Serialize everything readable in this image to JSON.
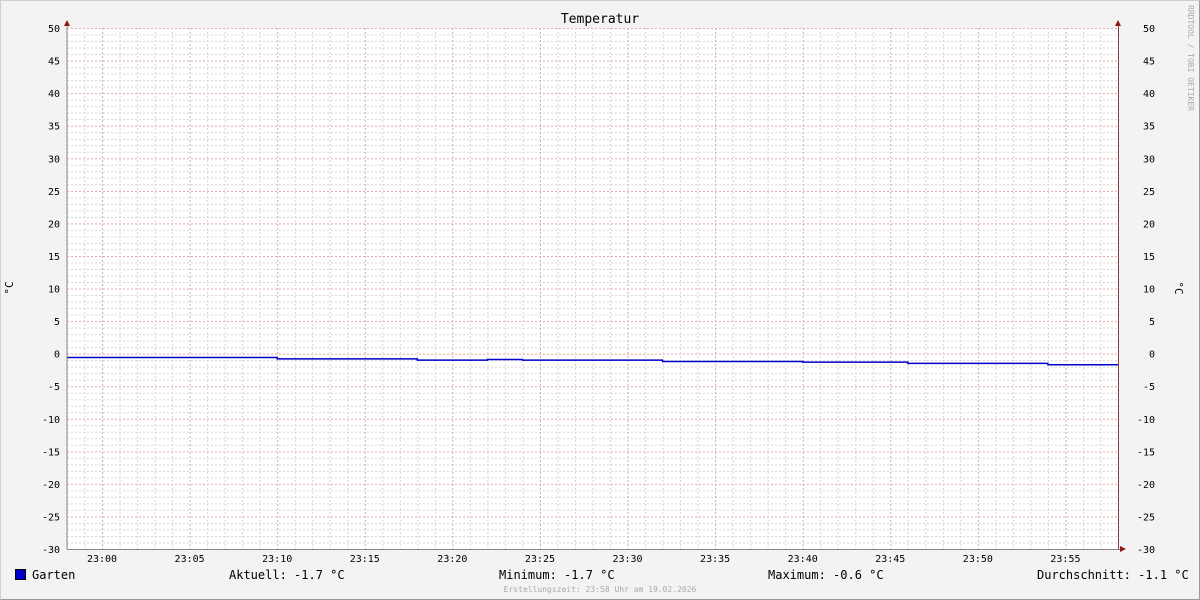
{
  "chart_data": {
    "type": "line",
    "title": "Temperatur",
    "ylabel": "°C",
    "ylabel_right": "°C",
    "ylim": [
      -30,
      50
    ],
    "yticks": [
      50,
      45,
      40,
      35,
      30,
      25,
      20,
      15,
      10,
      5,
      0,
      -5,
      -10,
      -15,
      -20,
      -25,
      -30
    ],
    "xlim": [
      "22:58",
      "23:58"
    ],
    "xticks": [
      "23:00",
      "23:05",
      "23:10",
      "23:15",
      "23:20",
      "23:25",
      "23:30",
      "23:35",
      "23:40",
      "23:45",
      "23:50",
      "23:55"
    ],
    "grid": true,
    "series": [
      {
        "name": "Garten",
        "color": "#0000cc",
        "step": true,
        "x": [
          "22:58",
          "23:10",
          "23:18",
          "23:22",
          "23:24",
          "23:32",
          "23:40",
          "23:46",
          "23:54",
          "23:58"
        ],
        "values": [
          -0.6,
          -0.8,
          -1.0,
          -0.9,
          -1.0,
          -1.2,
          -1.3,
          -1.5,
          -1.7,
          -1.7
        ]
      }
    ],
    "legend": {
      "name": "Garten",
      "current": "Aktuell: -1.7 °C",
      "minimum": "Minimum: -1.7 °C",
      "maximum": "Maximum: -0.6 °C",
      "average": "Durchschnitt: -1.1 °C"
    },
    "footer": "Erstellungszeit: 23:58 Uhr am 19.02.2026",
    "watermark": "RRDTOOL / TOBI OETIKER"
  }
}
